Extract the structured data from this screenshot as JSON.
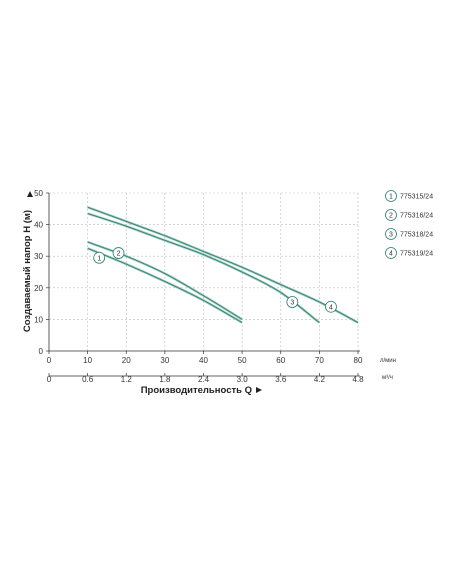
{
  "chart_data": {
    "type": "line",
    "ylabel": "Создаваемый напор H (м)",
    "xlabel": "Производительность Q",
    "x_primary": {
      "unit": "л/мин",
      "ticks": [
        "0",
        "10",
        "20",
        "30",
        "40",
        "50",
        "60",
        "70",
        "80"
      ]
    },
    "x_secondary": {
      "unit": "м³/ч",
      "ticks": [
        "0",
        "0.6",
        "1.2",
        "1.8",
        "2.4",
        "3.0",
        "3.6",
        "4.2",
        "4.8"
      ]
    },
    "y_ticks": [
      "0",
      "10",
      "20",
      "30",
      "40",
      "50"
    ],
    "xlim": [
      0,
      80
    ],
    "ylim": [
      0,
      50
    ],
    "grid": true,
    "legend_position": "right",
    "colors": {
      "curve_a": "#2a7d6c",
      "curve_b": "#9cc9be",
      "grid": "#bbbbbb",
      "axis": "#333333"
    },
    "series": [
      {
        "name": "775315/24",
        "marker": "1",
        "marker_at": [
          13,
          29.5
        ],
        "x": [
          10,
          20,
          30,
          40,
          50
        ],
        "y": [
          32.5,
          27.5,
          22,
          16,
          9
        ]
      },
      {
        "name": "775316/24",
        "marker": "2",
        "marker_at": [
          18,
          31
        ],
        "x": [
          10,
          20,
          30,
          40,
          50
        ],
        "y": [
          34.5,
          30,
          24.5,
          17.5,
          10
        ]
      },
      {
        "name": "775318/24",
        "marker": "3",
        "marker_at": [
          63,
          15.5
        ],
        "x": [
          10,
          20,
          30,
          40,
          50,
          60,
          70
        ],
        "y": [
          43.5,
          39.5,
          35,
          30.5,
          25,
          18.5,
          9
        ]
      },
      {
        "name": "775319/24",
        "marker": "4",
        "marker_at": [
          73,
          14
        ],
        "x": [
          10,
          20,
          30,
          40,
          50,
          60,
          70,
          80
        ],
        "y": [
          45.5,
          41,
          36.5,
          31.5,
          26.5,
          21,
          15.5,
          9
        ]
      }
    ]
  }
}
